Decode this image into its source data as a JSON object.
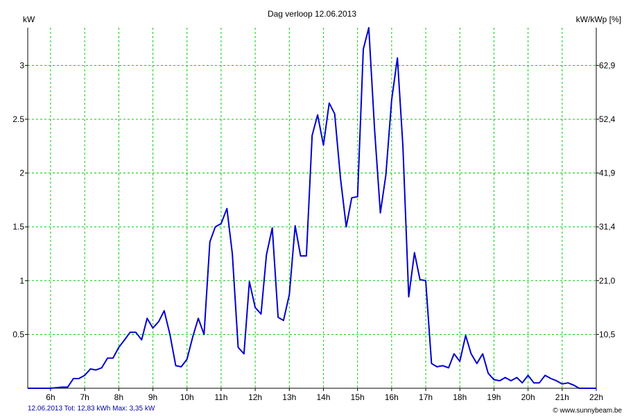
{
  "chart_data": {
    "type": "line",
    "title": "Dag  verloop 12.06.2013",
    "ylabel_left": "kW",
    "ylabel_right": "kW/kWp [%]",
    "footer_left": "12.06.2013 Tot: 12,83 kWh Max: 3,35 kW",
    "footer_right": "© www.sunnybeam.be",
    "xlim": [
      5.33,
      22.0
    ],
    "ylim": [
      0,
      3.35
    ],
    "x_ticks": [
      {
        "value": 6,
        "label": "6h"
      },
      {
        "value": 7,
        "label": "7h"
      },
      {
        "value": 8,
        "label": "8h"
      },
      {
        "value": 9,
        "label": "9h"
      },
      {
        "value": 10,
        "label": "10h"
      },
      {
        "value": 11,
        "label": "11h"
      },
      {
        "value": 12,
        "label": "12h"
      },
      {
        "value": 13,
        "label": "13h"
      },
      {
        "value": 14,
        "label": "14h"
      },
      {
        "value": 15,
        "label": "15h"
      },
      {
        "value": 16,
        "label": "16h"
      },
      {
        "value": 17,
        "label": "17h"
      },
      {
        "value": 18,
        "label": "18h"
      },
      {
        "value": 19,
        "label": "19h"
      },
      {
        "value": 20,
        "label": "20h"
      },
      {
        "value": 21,
        "label": "21h"
      },
      {
        "value": 22,
        "label": "22h"
      }
    ],
    "y_ticks_left": [
      {
        "value": 0.5,
        "label": "0.5"
      },
      {
        "value": 1,
        "label": "1"
      },
      {
        "value": 1.5,
        "label": "1.5"
      },
      {
        "value": 2,
        "label": "2"
      },
      {
        "value": 2.5,
        "label": "2.5"
      },
      {
        "value": 3,
        "label": "3"
      }
    ],
    "y_ticks_right": [
      {
        "value": 0.5,
        "label": "10,5"
      },
      {
        "value": 1,
        "label": "21,0"
      },
      {
        "value": 1.5,
        "label": "31,4"
      },
      {
        "value": 2,
        "label": "41,9"
      },
      {
        "value": 2.5,
        "label": "52,4"
      },
      {
        "value": 3,
        "label": "62,9"
      }
    ],
    "grid": true,
    "colors": {
      "line": "#0000cc",
      "grid": "#00cc00",
      "axis": "#000000",
      "footer_text": "#0000b0"
    },
    "series": [
      {
        "x": [
          5.33,
          5.5,
          6.0,
          6.33,
          6.5,
          6.67,
          6.83,
          7.0,
          7.17,
          7.33,
          7.5,
          7.67,
          7.83,
          8.0,
          8.17,
          8.33,
          8.5,
          8.67,
          8.83,
          9.0,
          9.17,
          9.33,
          9.5,
          9.67,
          9.83,
          10.0,
          10.17,
          10.33,
          10.5,
          10.67,
          10.83,
          11.0,
          11.17,
          11.33,
          11.5,
          11.67,
          11.83,
          12.0,
          12.17,
          12.33,
          12.5,
          12.67,
          12.83,
          13.0,
          13.17,
          13.33,
          13.5,
          13.67,
          13.83,
          14.0,
          14.17,
          14.33,
          14.5,
          14.67,
          14.83,
          15.0,
          15.17,
          15.33,
          15.5,
          15.67,
          15.83,
          16.0,
          16.17,
          16.33,
          16.5,
          16.67,
          16.83,
          17.0,
          17.17,
          17.33,
          17.5,
          17.67,
          17.83,
          18.0,
          18.17,
          18.33,
          18.5,
          18.67,
          18.83,
          19.0,
          19.17,
          19.33,
          19.5,
          19.67,
          19.83,
          20.0,
          20.17,
          20.33,
          20.5,
          20.67,
          20.83,
          21.0,
          21.17,
          21.33,
          21.5,
          21.67,
          22.0
        ],
        "values": [
          0.0,
          0.0,
          0.0,
          0.01,
          0.01,
          0.09,
          0.09,
          0.12,
          0.18,
          0.17,
          0.19,
          0.28,
          0.28,
          0.38,
          0.45,
          0.52,
          0.52,
          0.45,
          0.65,
          0.56,
          0.62,
          0.72,
          0.5,
          0.21,
          0.2,
          0.27,
          0.48,
          0.65,
          0.5,
          1.36,
          1.5,
          1.53,
          1.67,
          1.25,
          0.38,
          0.32,
          0.99,
          0.75,
          0.69,
          1.24,
          1.49,
          0.66,
          0.63,
          0.87,
          1.51,
          1.23,
          1.23,
          2.35,
          2.54,
          2.26,
          2.65,
          2.55,
          1.95,
          1.5,
          1.77,
          1.78,
          3.15,
          3.35,
          2.4,
          1.63,
          1.98,
          2.68,
          3.07,
          2.25,
          0.85,
          1.26,
          1.01,
          1.0,
          0.23,
          0.2,
          0.21,
          0.19,
          0.32,
          0.25,
          0.49,
          0.32,
          0.23,
          0.32,
          0.14,
          0.08,
          0.07,
          0.1,
          0.07,
          0.1,
          0.05,
          0.12,
          0.05,
          0.05,
          0.12,
          0.09,
          0.07,
          0.04,
          0.05,
          0.03,
          0.0,
          0.0,
          0.0
        ]
      }
    ]
  }
}
